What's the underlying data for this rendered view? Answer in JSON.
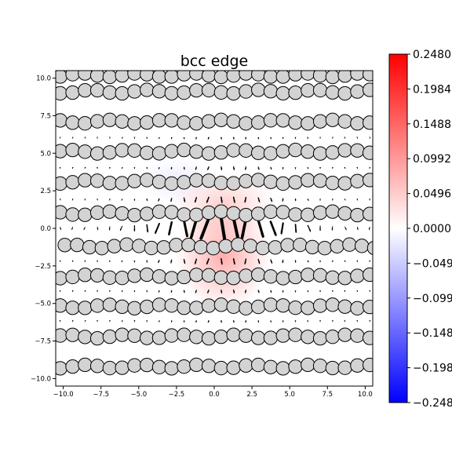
{
  "chart_data": {
    "type": "scatter",
    "title": "bcc edge",
    "xlim": [
      -10.5,
      10.5
    ],
    "ylim": [
      -10.5,
      10.5
    ],
    "xticks": [
      "−10.0",
      "−7.5",
      "−5.0",
      "−2.5",
      "0.0",
      "2.5",
      "5.0",
      "7.5",
      "10.0"
    ],
    "xtick_values": [
      -10,
      -7.5,
      -5,
      -2.5,
      0,
      2.5,
      5,
      7.5,
      10
    ],
    "yticks": [
      "10.0",
      "7.5",
      "5.0",
      "2.5",
      "0.0",
      "−2.5",
      "−5.0",
      "−7.5",
      "−10.0"
    ],
    "ytick_values": [
      10,
      7.5,
      5,
      2.5,
      0,
      -2.5,
      -5,
      -7.5,
      -10
    ],
    "grid": false,
    "colormap": "bwr",
    "colorbar": {
      "min": -0.248,
      "max": 0.248,
      "colors": [
        "#0000ff",
        "#ffffff",
        "#ff0000"
      ],
      "tick_values": [
        0.248,
        0.1984,
        0.1488,
        0.0992,
        0.0496,
        0.0,
        -0.0496,
        -0.0992,
        -0.1488,
        -0.1984,
        -0.248
      ],
      "tick_labels": [
        "0.2480",
        "0.1984",
        "0.1488",
        "0.0992",
        "0.0496",
        "0.0000",
        "−0.0496",
        "−0.0992",
        "−0.1488",
        "−0.1984",
        "−0.2480"
      ]
    },
    "atom_rows": [
      {
        "y": 10.2,
        "x0": -10.2,
        "dx": 0.82
      },
      {
        "y": 9.1,
        "x0": -10.2,
        "dx": 0.82
      },
      {
        "y": 7.1,
        "x0": -10.2,
        "dx": 0.82
      },
      {
        "y": 5.1,
        "x0": -10.2,
        "dx": 0.82
      },
      {
        "y": 3.1,
        "x0": -10.2,
        "dx": 0.82
      },
      {
        "y": 1.0,
        "x0": -10.2,
        "dx": 0.82
      },
      {
        "y": -1.2,
        "x0": -9.9,
        "dx": 0.82
      },
      {
        "y": -3.2,
        "x0": -10.2,
        "dx": 0.82
      },
      {
        "y": -5.2,
        "x0": -10.2,
        "dx": 0.82
      },
      {
        "y": -7.2,
        "x0": -10.2,
        "dx": 0.82
      },
      {
        "y": -9.2,
        "x0": -10.2,
        "dx": 0.82
      }
    ],
    "atom_color": "#d3d3d3",
    "displacement_row_y": 0.0,
    "arrow_rows": [
      {
        "y": 0.0,
        "x0": -10.2,
        "dx": 0.82,
        "core_x": 0.6,
        "core_width": 3.0,
        "max_len": 1.4
      },
      {
        "y": 1.9,
        "x0": -10.2,
        "dx": 0.82,
        "core_x": 0.6,
        "core_width": 3.0,
        "max_len": 0.35
      },
      {
        "y": -2.2,
        "x0": -10.2,
        "dx": 0.82,
        "core_x": 0.6,
        "core_width": 3.0,
        "max_len": 0.35
      },
      {
        "y": 4.0,
        "x0": -10.2,
        "dx": 0.82,
        "core_x": 0.6,
        "core_width": 3.0,
        "max_len": 0.2
      },
      {
        "y": -4.2,
        "x0": -10.2,
        "dx": 0.82,
        "core_x": 0.6,
        "core_width": 3.0,
        "max_len": 0.2
      },
      {
        "y": 6.0,
        "x0": -10.2,
        "dx": 0.82,
        "core_x": 0.6,
        "core_width": 3.0,
        "max_len": 0.12
      },
      {
        "y": -6.2,
        "x0": -10.2,
        "dx": 0.82,
        "core_x": 0.6,
        "core_width": 3.0,
        "max_len": 0.12
      }
    ],
    "strain_field": [
      {
        "x": 0.6,
        "y": -1.8,
        "value": 0.09,
        "rx": 3.2,
        "ry": 3.6
      },
      {
        "x": 0.6,
        "y": 1.6,
        "value": 0.05,
        "rx": 3.5,
        "ry": 2.2
      },
      {
        "x": -2.5,
        "y": 3.2,
        "value": -0.02,
        "rx": 2.5,
        "ry": 1.5
      }
    ]
  }
}
